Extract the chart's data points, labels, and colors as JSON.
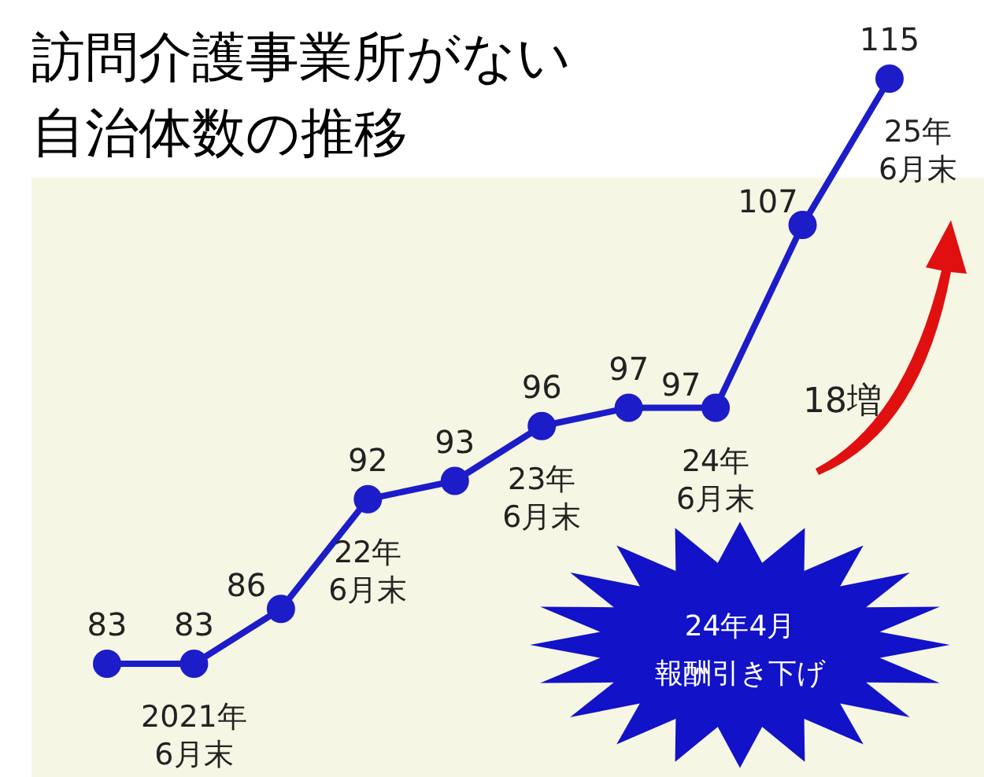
{
  "chart_data": {
    "type": "line",
    "title": "訪問介護事業所がない自治体数の推移",
    "categories": [
      null,
      "2021年6月末",
      null,
      "22年6月末",
      null,
      "23年6月末",
      null,
      "24年6月末",
      null,
      "25年6月末"
    ],
    "series": [
      {
        "color": "#1c1cc8",
        "values": [
          83,
          83,
          86,
          92,
          93,
          96,
          97,
          97,
          107,
          115
        ]
      }
    ],
    "data_labels": true,
    "marker": "circle",
    "line_style": "solid",
    "annotations": [
      "18増",
      "24年4月報酬引き下げ"
    ]
  }
}
